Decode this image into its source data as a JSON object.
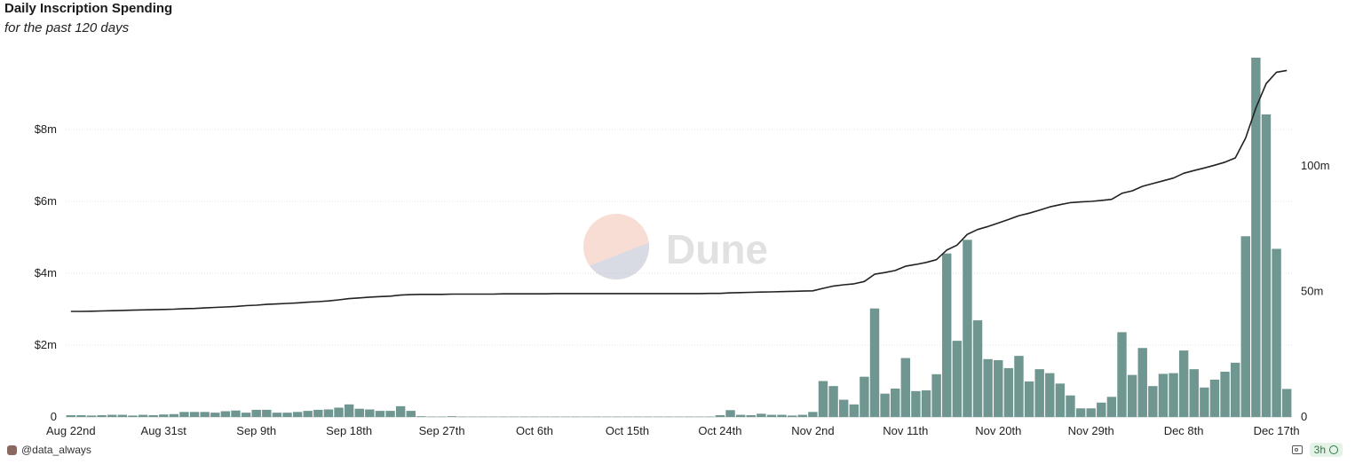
{
  "chart_data": {
    "type": "bar",
    "title": "Daily Inscription Spending",
    "subtitle": "for the past 120 days",
    "x_ticks": [
      "Aug 22nd",
      "Aug 31st",
      "Sep 9th",
      "Sep 18th",
      "Sep 27th",
      "Oct 6th",
      "Oct 15th",
      "Oct 24th",
      "Nov 2nd",
      "Nov 11th",
      "Nov 20th",
      "Nov 29th",
      "Dec 8th",
      "Dec 17th"
    ],
    "left_axis": {
      "ticks": [
        0,
        2000000,
        4000000,
        6000000,
        8000000
      ],
      "tick_labels": [
        "0",
        "$2m",
        "$4m",
        "$6m",
        "$8m"
      ],
      "ylim": [
        0,
        10000000
      ]
    },
    "right_axis": {
      "ticks": [
        0,
        50000000,
        100000000
      ],
      "tick_labels": [
        "0",
        "50m",
        "100m"
      ],
      "ylim": [
        0,
        143000000
      ]
    },
    "grid": true,
    "series": [
      {
        "kind": "bar",
        "color": "#6f9690",
        "values": [
          50000,
          50000,
          40000,
          50000,
          60000,
          60000,
          40000,
          60000,
          50000,
          70000,
          80000,
          140000,
          140000,
          140000,
          120000,
          160000,
          180000,
          120000,
          200000,
          200000,
          120000,
          120000,
          140000,
          170000,
          200000,
          210000,
          260000,
          350000,
          230000,
          210000,
          170000,
          170000,
          300000,
          170000,
          20000,
          10000,
          10000,
          20000,
          10000,
          10000,
          10000,
          10000,
          10000,
          10000,
          10000,
          10000,
          10000,
          10000,
          10000,
          10000,
          10000,
          10000,
          10000,
          10000,
          10000,
          10000,
          10000,
          10000,
          10000,
          10000,
          10000,
          10000,
          10000,
          50000,
          190000,
          60000,
          50000,
          90000,
          60000,
          60000,
          40000,
          60000,
          140000,
          1000000,
          860000,
          480000,
          350000,
          1120000,
          3020000,
          650000,
          790000,
          1640000,
          720000,
          740000,
          1190000,
          4550000,
          2120000,
          4930000,
          2690000,
          1610000,
          1580000,
          1360000,
          1700000,
          990000,
          1330000,
          1220000,
          930000,
          600000,
          240000,
          240000,
          400000,
          560000,
          2360000,
          1170000,
          1920000,
          860000,
          1200000,
          1220000,
          1850000,
          1330000,
          820000,
          1040000,
          1260000,
          1510000,
          5030000,
          10000000,
          8420000,
          4680000,
          780000
        ]
      },
      {
        "kind": "line",
        "color": "#222222",
        "values": [
          42000000,
          42000000,
          42100000,
          42200000,
          42300000,
          42400000,
          42500000,
          42600000,
          42700000,
          42800000,
          42900000,
          43100000,
          43200000,
          43400000,
          43600000,
          43800000,
          44000000,
          44300000,
          44500000,
          44800000,
          45000000,
          45200000,
          45400000,
          45700000,
          45900000,
          46200000,
          46600000,
          47100000,
          47400000,
          47700000,
          47900000,
          48100000,
          48500000,
          48700000,
          48800000,
          48800000,
          48800000,
          48900000,
          48900000,
          48900000,
          48900000,
          48900000,
          49000000,
          49000000,
          49000000,
          49000000,
          49000000,
          49100000,
          49100000,
          49100000,
          49100000,
          49100000,
          49100000,
          49100000,
          49100000,
          49100000,
          49100000,
          49100000,
          49100000,
          49100000,
          49100000,
          49100000,
          49200000,
          49200000,
          49400000,
          49500000,
          49600000,
          49700000,
          49800000,
          49900000,
          50000000,
          50100000,
          50200000,
          51200000,
          52100000,
          52600000,
          53000000,
          53900000,
          56800000,
          57500000,
          58300000,
          60000000,
          60700000,
          61500000,
          62600000,
          66400000,
          68400000,
          72700000,
          74600000,
          75800000,
          77200000,
          78600000,
          80100000,
          81100000,
          82300000,
          83600000,
          84500000,
          85300000,
          85600000,
          85800000,
          86200000,
          86600000,
          89000000,
          90000000,
          91800000,
          92900000,
          94000000,
          95100000,
          97000000,
          98100000,
          99100000,
          100200000,
          101400000,
          103100000,
          111000000,
          123000000,
          132700000,
          137200000,
          137900000
        ]
      }
    ]
  },
  "footer": {
    "author": "@data_always",
    "age": "3h"
  },
  "watermark": "Dune"
}
